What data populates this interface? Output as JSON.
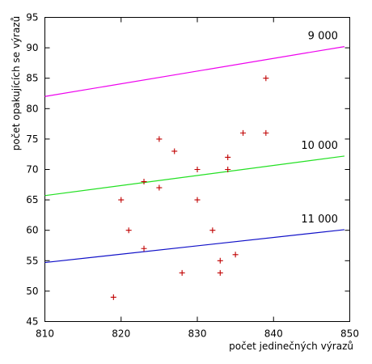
{
  "chart_data": {
    "type": "scatter",
    "title": "",
    "xlabel": "počet jedinečných výrazů",
    "ylabel": "počet opakujících se výrazů",
    "xlim": [
      810,
      850
    ],
    "ylim": [
      45,
      95
    ],
    "xticks": [
      810,
      820,
      830,
      840,
      850
    ],
    "yticks": [
      45,
      50,
      55,
      60,
      65,
      70,
      75,
      80,
      85,
      90,
      95
    ],
    "grid": false,
    "points": {
      "marker": "plus",
      "color": "#c00000",
      "x": [
        819,
        820,
        821,
        823,
        823,
        825,
        825,
        827,
        828,
        830,
        830,
        832,
        833,
        833,
        834,
        834,
        835,
        836,
        839,
        839
      ],
      "y": [
        49,
        65,
        60,
        57,
        68,
        75,
        67,
        73,
        53,
        70,
        65,
        60,
        55,
        53,
        72,
        70,
        56,
        76,
        85,
        76
      ]
    },
    "lines": [
      {
        "label": "9 000",
        "color": "#ee00ee",
        "x": [
          810,
          849.3
        ],
        "y": [
          82.0,
          90.2
        ]
      },
      {
        "label": "10 000",
        "color": "#22e022",
        "x": [
          810,
          849.3
        ],
        "y": [
          65.7,
          72.2
        ]
      },
      {
        "label": "11 000",
        "color": "#1010c8",
        "x": [
          810,
          849.3
        ],
        "y": [
          54.7,
          60.1
        ]
      }
    ]
  }
}
